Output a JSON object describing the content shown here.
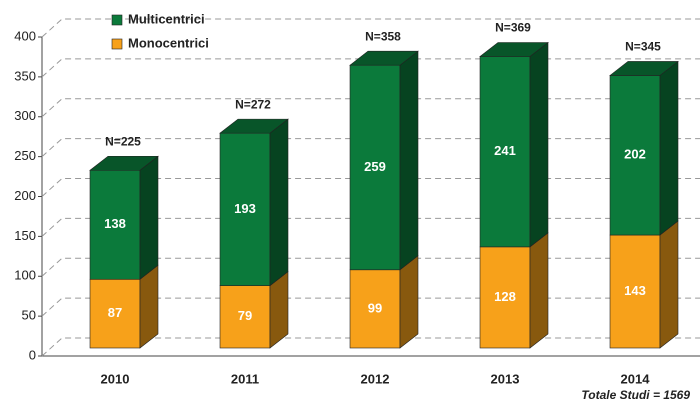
{
  "chart_data": {
    "type": "bar3d_stacked",
    "categories": [
      "2010",
      "2011",
      "2012",
      "2013",
      "2014"
    ],
    "series": [
      {
        "name": "Monocentrici",
        "color": "#f7a11a",
        "values": [
          87,
          79,
          99,
          128,
          143
        ]
      },
      {
        "name": "Multicentrici",
        "color": "#0b7a3b",
        "values": [
          138,
          193,
          259,
          241,
          202
        ]
      }
    ],
    "total_labels": [
      "N=225",
      "N=272",
      "N=358",
      "N=369",
      "N=345"
    ],
    "ylim": [
      0,
      400
    ],
    "yticks": [
      0,
      50,
      100,
      150,
      200,
      250,
      300,
      350,
      400
    ],
    "grid": true,
    "legend_order": [
      "Multicentrici",
      "Monocentrici"
    ],
    "footnote": "Totale Studi  = 1569"
  }
}
